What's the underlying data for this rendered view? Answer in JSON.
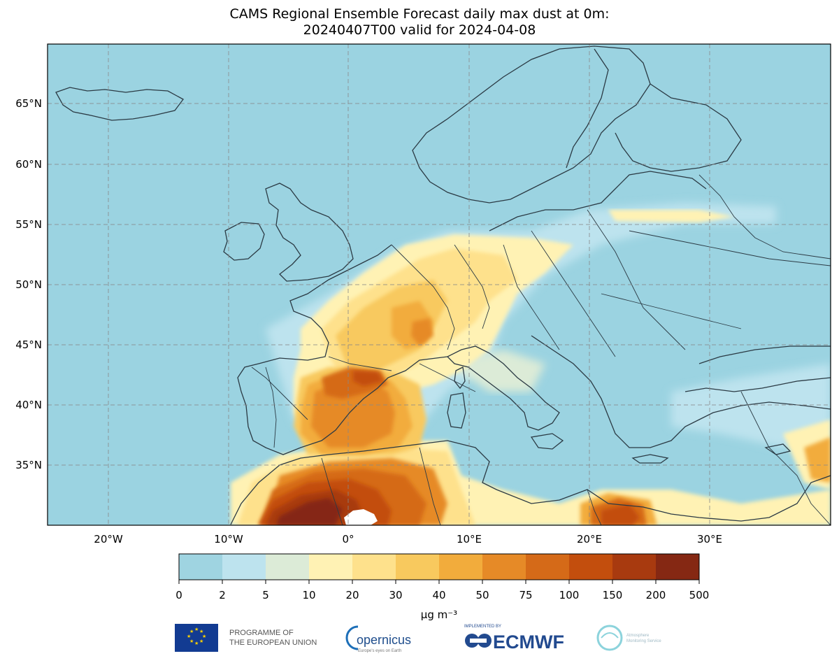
{
  "title": {
    "line1": "CAMS Regional Ensemble Forecast daily max dust at 0m:",
    "line2": "20240407T00 valid for 2024-04-08"
  },
  "map": {
    "lon_ticks": [
      "20°W",
      "10°W",
      "0°",
      "10°E",
      "20°E",
      "30°E"
    ],
    "lat_ticks": [
      "65°N",
      "60°N",
      "55°N",
      "50°N",
      "45°N",
      "40°N",
      "35°N"
    ],
    "colors": {
      "ocean": "#9bd3e1",
      "land_low": "#a6d5e3"
    }
  },
  "colorbar": {
    "colors": [
      "#9fd4e1",
      "#bde3ee",
      "#dcebd7",
      "#fff2b4",
      "#fee18c",
      "#f8c95e",
      "#f2ac3c",
      "#e68a27",
      "#d56a18",
      "#c34e0d",
      "#a83a0f",
      "#852813"
    ],
    "ticks": [
      "0",
      "2",
      "5",
      "10",
      "20",
      "30",
      "40",
      "50",
      "75",
      "100",
      "150",
      "200",
      "500"
    ],
    "unit_label": "µg m⁻³"
  },
  "logos": {
    "eu_text_1": "PROGRAMME OF",
    "eu_text_2": "THE EUROPEAN UNION",
    "copernicus": "opernicus",
    "copernicus_sub": "Europe's eyes on Earth",
    "ecmwf_small": "IMPLEMENTED BY",
    "ecmwf": "ECMWF",
    "cams_1": "Atmosphere",
    "cams_2": "Monitoring Service"
  }
}
